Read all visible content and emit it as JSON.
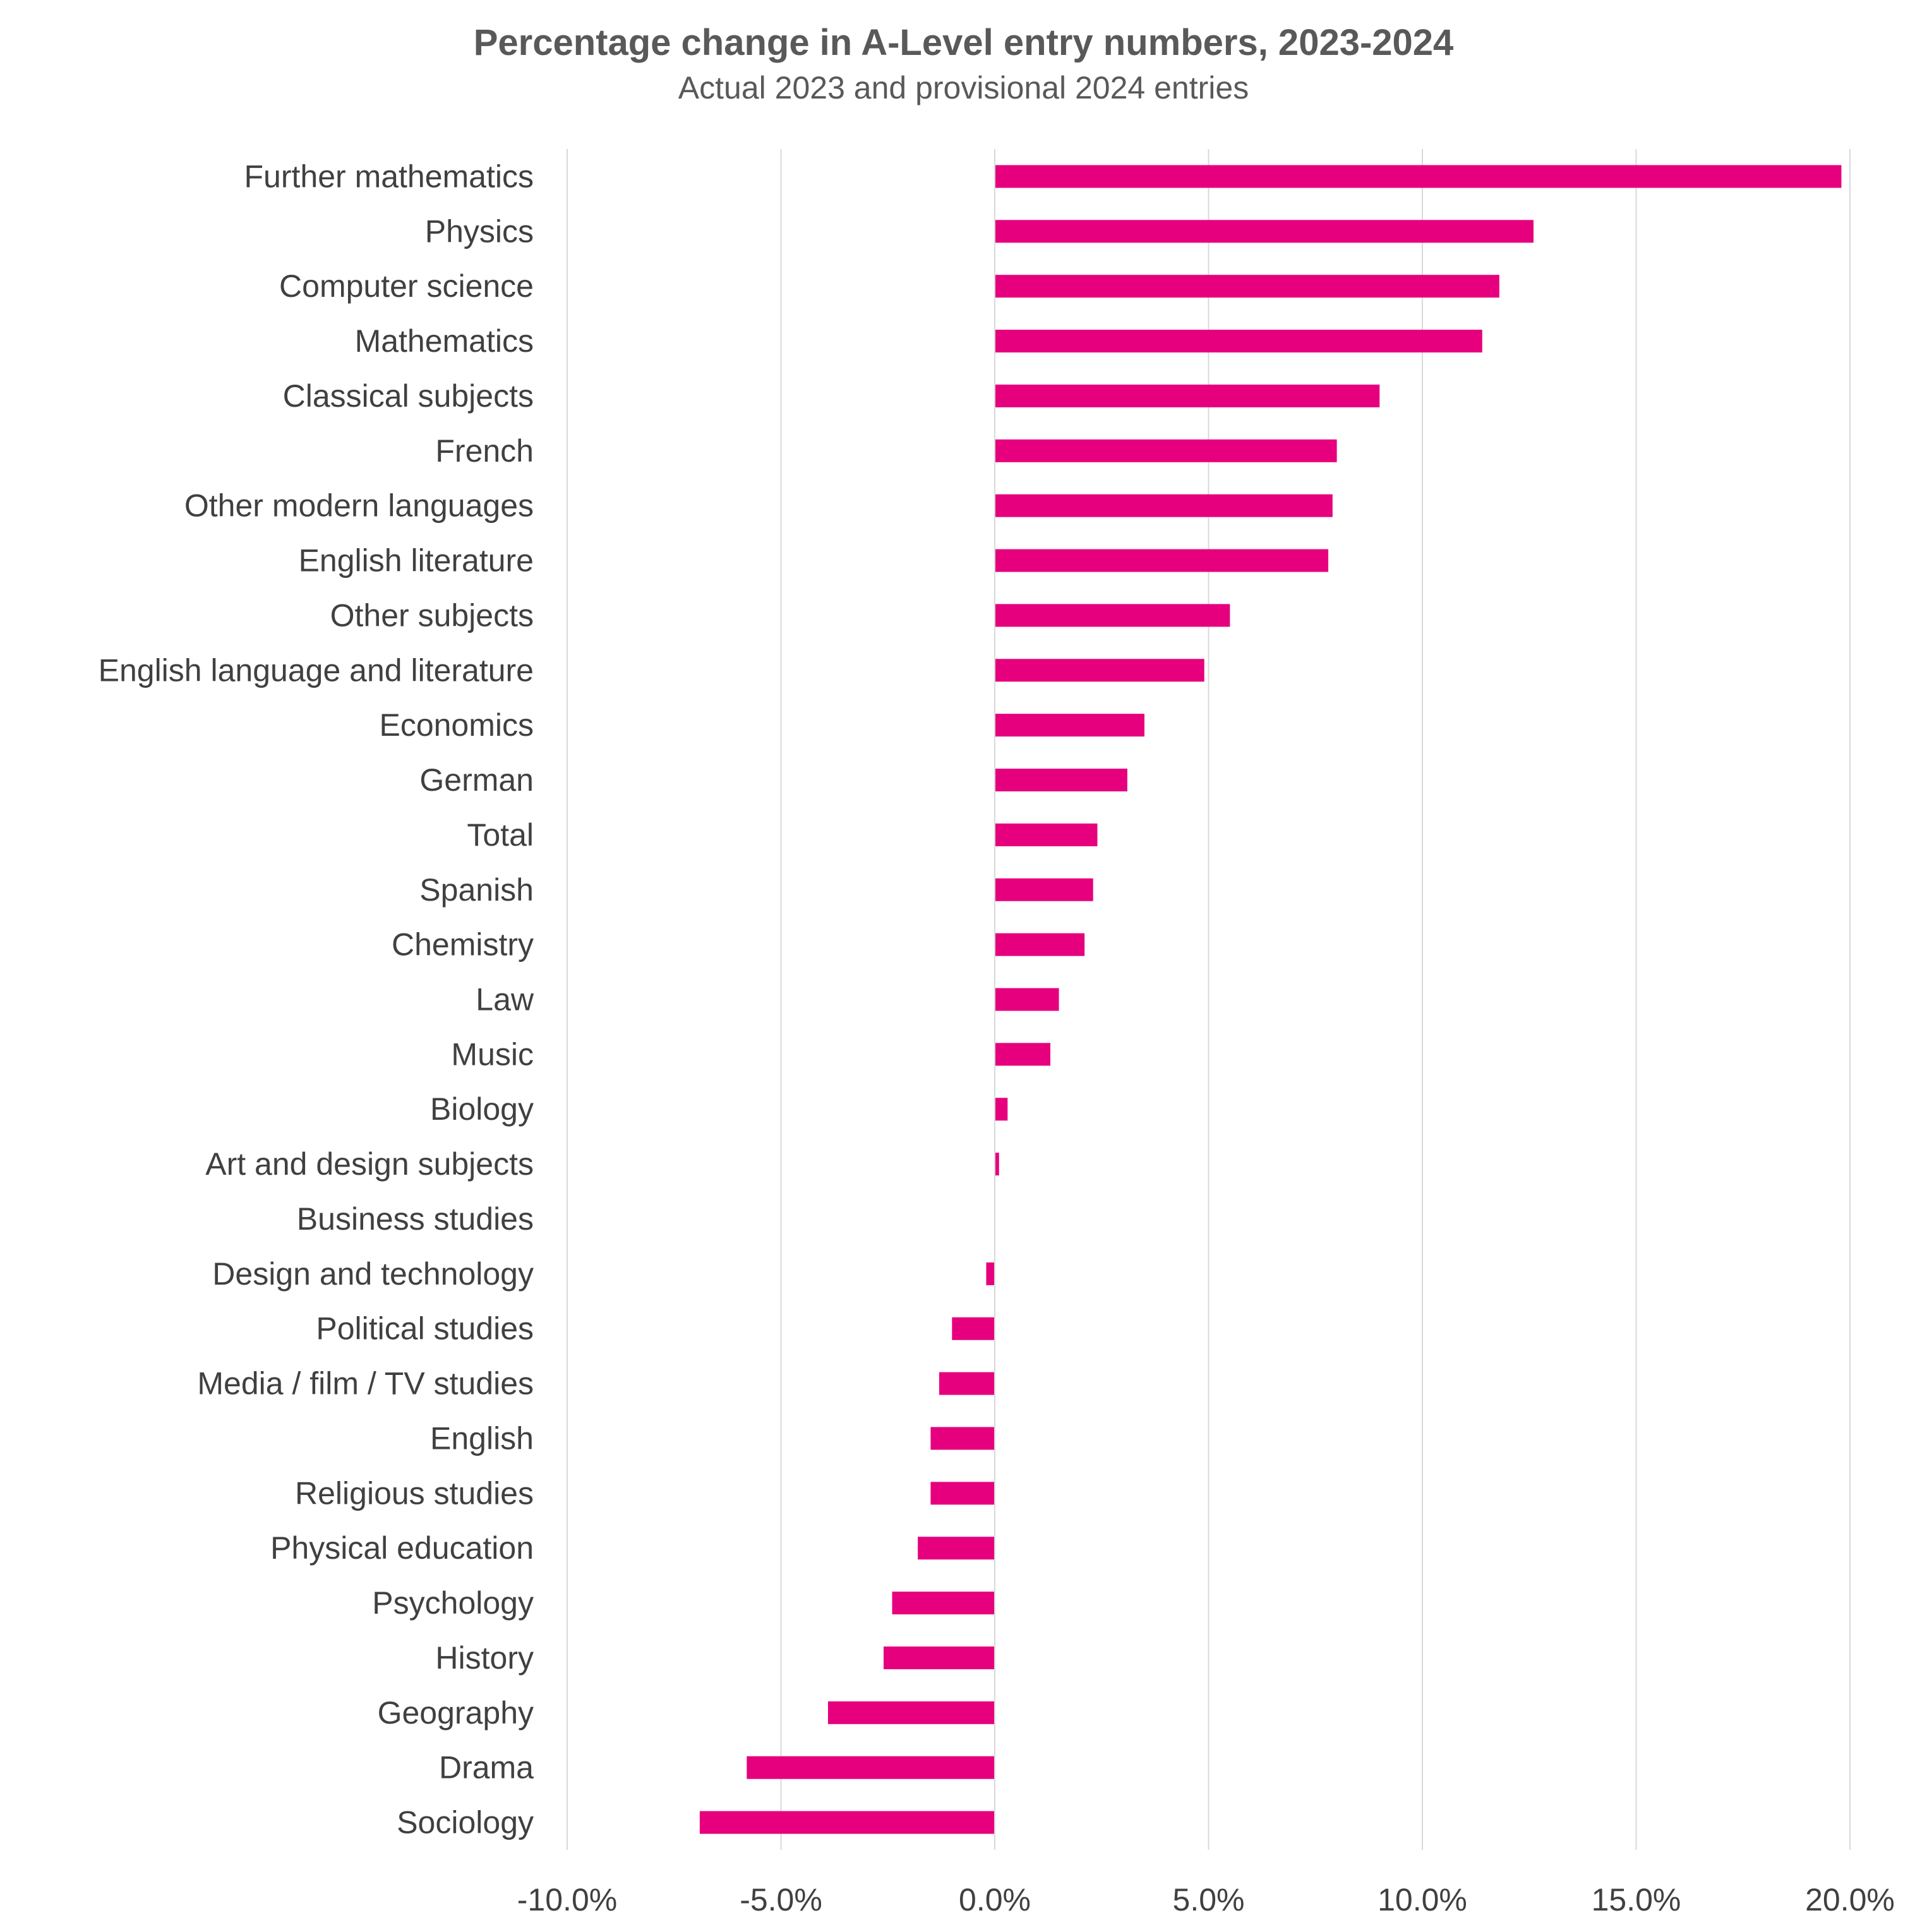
{
  "chart_data": {
    "type": "bar",
    "orientation": "horizontal",
    "title": "Percentage change in A-Level entry numbers, 2023-2024",
    "subtitle": "Actual 2023 and provisional 2024 entries",
    "xlabel": "",
    "ylabel": "",
    "xlim": [
      -10,
      20
    ],
    "x_ticks": [
      -10,
      -5,
      0,
      5,
      10,
      15,
      20
    ],
    "x_tick_labels": [
      "-10.0%",
      "-5.0%",
      "0.0%",
      "5.0%",
      "10.0%",
      "15.0%",
      "20.0%"
    ],
    "grid": "vertical",
    "legend": "none",
    "bar_color": "#e6007e",
    "categories": [
      "Further mathematics",
      "Physics",
      "Computer science",
      "Mathematics",
      "Classical subjects",
      "French",
      "Other modern languages",
      "English literature",
      "Other subjects",
      "English language and literature",
      "Economics",
      "German",
      "Total",
      "Spanish",
      "Chemistry",
      "Law",
      "Music",
      "Biology",
      "Art and design subjects",
      "Business studies",
      "Design and technology",
      "Political studies",
      "Media / film / TV studies",
      "English",
      "Religious studies",
      "Physical education",
      "Psychology",
      "History",
      "Geography",
      "Drama",
      "Sociology"
    ],
    "values": [
      19.8,
      12.6,
      11.8,
      11.4,
      9.0,
      8.0,
      7.9,
      7.8,
      5.5,
      4.9,
      3.5,
      3.1,
      2.4,
      2.3,
      2.1,
      1.5,
      1.3,
      0.3,
      0.1,
      0.0,
      -0.2,
      -1.0,
      -1.3,
      -1.5,
      -1.5,
      -1.8,
      -2.4,
      -2.6,
      -3.9,
      -5.8,
      -6.9
    ]
  }
}
